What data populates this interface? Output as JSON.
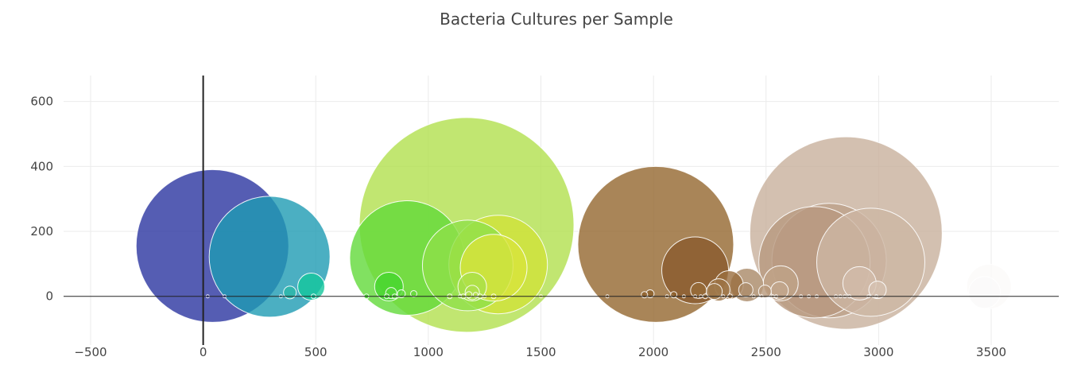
{
  "chart_data": {
    "type": "scatter",
    "title": "Bacteria Cultures per Sample",
    "xlabel": "",
    "ylabel": "",
    "xlim": [
      -620,
      3800
    ],
    "ylim": [
      -150,
      680
    ],
    "x_ticks": [
      -500,
      0,
      500,
      1000,
      1500,
      2000,
      2500,
      3000,
      3500
    ],
    "y_ticks": [
      0,
      200,
      400,
      600
    ],
    "grid": true,
    "zero_lines": true,
    "bubble_color_scale": "Earth",
    "points": [
      {
        "x": 41,
        "y": 155,
        "r": 96,
        "color": "#2b35a0"
      },
      {
        "x": 295,
        "y": 122,
        "r": 76,
        "color": "#1e9bb3"
      },
      {
        "x": 1170,
        "y": 220,
        "r": 135,
        "color": "#b2e04e"
      },
      {
        "x": 905,
        "y": 118,
        "r": 72,
        "color": "#62d93a"
      },
      {
        "x": 1175,
        "y": 95,
        "r": 57,
        "color": "#8fe04a"
      },
      {
        "x": 1310,
        "y": 98,
        "r": 62,
        "color": "#cfe23a"
      },
      {
        "x": 1290,
        "y": 88,
        "r": 42,
        "color": "#d8e43c"
      },
      {
        "x": 2010,
        "y": 160,
        "r": 98,
        "color": "#94672e"
      },
      {
        "x": 2185,
        "y": 80,
        "r": 42,
        "color": "#8a5a2e"
      },
      {
        "x": 2855,
        "y": 195,
        "r": 121,
        "color": "#c8b09c"
      },
      {
        "x": 2780,
        "y": 110,
        "r": 72,
        "color": "#bda08a"
      },
      {
        "x": 2715,
        "y": 105,
        "r": 70,
        "color": "#b89880"
      },
      {
        "x": 2965,
        "y": 105,
        "r": 68,
        "color": "#cdb7a4"
      },
      {
        "x": 480,
        "y": 30,
        "r": 17,
        "color": "#14c79c"
      },
      {
        "x": 385,
        "y": 12,
        "r": 8,
        "color": "#2ab8a8"
      },
      {
        "x": 825,
        "y": 30,
        "r": 18,
        "color": "#45d62e"
      },
      {
        "x": 835,
        "y": 10,
        "r": 7,
        "color": "#56d83a"
      },
      {
        "x": 880,
        "y": 8,
        "r": 5,
        "color": "#5cd83c"
      },
      {
        "x": 935,
        "y": 8,
        "r": 4,
        "color": "#68da40"
      },
      {
        "x": 1195,
        "y": 30,
        "r": 18,
        "color": "#a8e04a"
      },
      {
        "x": 1195,
        "y": 12,
        "r": 9,
        "color": "#aee04c"
      },
      {
        "x": 1180,
        "y": 5,
        "r": 4,
        "color": "#b2e04e"
      },
      {
        "x": 1210,
        "y": 5,
        "r": 3,
        "color": "#b6e050"
      },
      {
        "x": 2335,
        "y": 35,
        "r": 18,
        "color": "#9a6e3e"
      },
      {
        "x": 2290,
        "y": 20,
        "r": 14,
        "color": "#9e7446"
      },
      {
        "x": 2270,
        "y": 15,
        "r": 10,
        "color": "#a07a4c"
      },
      {
        "x": 2415,
        "y": 35,
        "r": 21,
        "color": "#a98866"
      },
      {
        "x": 2410,
        "y": 20,
        "r": 9,
        "color": "#ac8c6a"
      },
      {
        "x": 2200,
        "y": 18,
        "r": 10,
        "color": "#966a38"
      },
      {
        "x": 2565,
        "y": 40,
        "r": 22,
        "color": "#bfa287"
      },
      {
        "x": 2560,
        "y": 18,
        "r": 11,
        "color": "#c2a68c"
      },
      {
        "x": 2495,
        "y": 15,
        "r": 8,
        "color": "#b8987a"
      },
      {
        "x": 2915,
        "y": 40,
        "r": 21,
        "color": "#d2bcaa"
      },
      {
        "x": 2995,
        "y": 20,
        "r": 11,
        "color": "#d6c2b2"
      },
      {
        "x": 1985,
        "y": 8,
        "r": 5,
        "color": "#8a5c28"
      },
      {
        "x": 1960,
        "y": 5,
        "r": 4,
        "color": "#8c5e2a"
      },
      {
        "x": 2090,
        "y": 5,
        "r": 4,
        "color": "#8e602c"
      },
      {
        "x": 3490,
        "y": 30,
        "r": 28,
        "color": "#fbfaf9"
      },
      {
        "x": 3470,
        "y": 12,
        "r": 20,
        "color": "#fafafa"
      },
      {
        "x": 20,
        "y": 0,
        "r": 2,
        "color": "#2b35a0"
      },
      {
        "x": 95,
        "y": 0,
        "r": 2,
        "color": "#2b35a0"
      },
      {
        "x": 345,
        "y": 0,
        "r": 2,
        "color": "#1e9bb3"
      },
      {
        "x": 490,
        "y": 0,
        "r": 3,
        "color": "#14c79c"
      },
      {
        "x": 725,
        "y": 0,
        "r": 3,
        "color": "#45d62e"
      },
      {
        "x": 815,
        "y": 0,
        "r": 3,
        "color": "#45d62e"
      },
      {
        "x": 850,
        "y": 0,
        "r": 3,
        "color": "#56d83a"
      },
      {
        "x": 1095,
        "y": 0,
        "r": 3,
        "color": "#a8e04a"
      },
      {
        "x": 1140,
        "y": 0,
        "r": 2,
        "color": "#a8e04a"
      },
      {
        "x": 1155,
        "y": 0,
        "r": 3,
        "color": "#aee04c"
      },
      {
        "x": 1230,
        "y": 0,
        "r": 3,
        "color": "#b6e050"
      },
      {
        "x": 1250,
        "y": 0,
        "r": 2,
        "color": "#b6e050"
      },
      {
        "x": 1290,
        "y": 0,
        "r": 3,
        "color": "#d8e43c"
      },
      {
        "x": 1500,
        "y": 0,
        "r": 2,
        "color": "#d8e43c"
      },
      {
        "x": 1795,
        "y": 0,
        "r": 2,
        "color": "#8a5c28"
      },
      {
        "x": 2060,
        "y": 0,
        "r": 2,
        "color": "#8a5c28"
      },
      {
        "x": 2135,
        "y": 0,
        "r": 2,
        "color": "#8e602c"
      },
      {
        "x": 2185,
        "y": 0,
        "r": 2,
        "color": "#8a5a2e"
      },
      {
        "x": 2210,
        "y": 0,
        "r": 2,
        "color": "#8a5a2e"
      },
      {
        "x": 2230,
        "y": 0,
        "r": 3,
        "color": "#966a38"
      },
      {
        "x": 2310,
        "y": 0,
        "r": 2,
        "color": "#9e7446"
      },
      {
        "x": 2340,
        "y": 0,
        "r": 3,
        "color": "#9a6e3e"
      },
      {
        "x": 2445,
        "y": 0,
        "r": 2,
        "color": "#a98866"
      },
      {
        "x": 2480,
        "y": 0,
        "r": 2,
        "color": "#b8987a"
      },
      {
        "x": 2530,
        "y": 0,
        "r": 2,
        "color": "#bfa287"
      },
      {
        "x": 2545,
        "y": 0,
        "r": 2,
        "color": "#bfa287"
      },
      {
        "x": 2655,
        "y": 0,
        "r": 2,
        "color": "#b89880"
      },
      {
        "x": 2690,
        "y": 0,
        "r": 2,
        "color": "#b89880"
      },
      {
        "x": 2725,
        "y": 0,
        "r": 2,
        "color": "#bda08a"
      },
      {
        "x": 2810,
        "y": 0,
        "r": 2,
        "color": "#bda08a"
      },
      {
        "x": 2830,
        "y": 0,
        "r": 2,
        "color": "#c8b09c"
      },
      {
        "x": 2850,
        "y": 0,
        "r": 2,
        "color": "#c8b09c"
      },
      {
        "x": 2870,
        "y": 0,
        "r": 2,
        "color": "#c8b09c"
      },
      {
        "x": 2955,
        "y": 0,
        "r": 2,
        "color": "#cdb7a4"
      },
      {
        "x": 2990,
        "y": 0,
        "r": 2,
        "color": "#d6c2b2"
      }
    ]
  },
  "colors": {
    "grid": "#ebebeb",
    "axis_line": "#222222",
    "bubble_stroke": "#ffffff"
  }
}
